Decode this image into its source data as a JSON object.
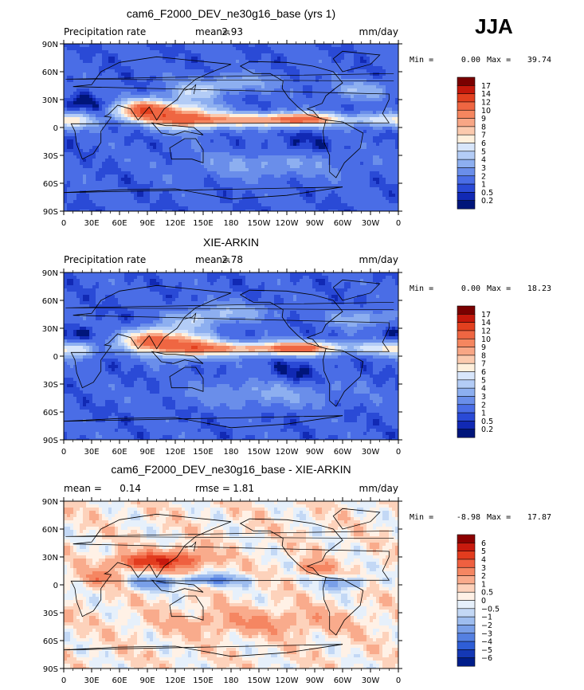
{
  "season": "JJA",
  "x_tick_labels": [
    "0",
    "30E",
    "60E",
    "90E",
    "120E",
    "150E",
    "180",
    "150W",
    "120W",
    "90W",
    "60W",
    "30W",
    "0"
  ],
  "y_tick_labels": [
    "90N",
    "60N",
    "30N",
    "0",
    "30S",
    "60S",
    "90S"
  ],
  "panels": [
    {
      "title": "cam6_F2000_DEV_ne30g16_base (yrs 1)",
      "left_label": "Precipitation rate",
      "stat_label": "mean=",
      "stat_value": "2.93",
      "stat2_label": "",
      "stat2_value": "",
      "units": "mm/day",
      "min_label": "Min =",
      "min_value": "0.00",
      "max_label": "Max =",
      "max_value": "39.74",
      "colorbar_labels": [
        "17",
        "14",
        "12",
        "10",
        "9",
        "8",
        "7",
        "6",
        "5",
        "4",
        "3",
        "2",
        "1",
        "0.5",
        "0.2"
      ],
      "colorbar_colors": [
        "#7a0000",
        "#c4180b",
        "#e2401f",
        "#ef6642",
        "#f5865f",
        "#f8a685",
        "#fbcaae",
        "#fff0dc",
        "#d8e6fb",
        "#b3ccf6",
        "#8daff0",
        "#6a8eea",
        "#4a6de6",
        "#2a4ad6",
        "#1129b4",
        "#00157a"
      ]
    },
    {
      "title": "XIE-ARKIN",
      "left_label": "Precipitation rate",
      "stat_label": "mean=",
      "stat_value": "2.78",
      "stat2_label": "",
      "stat2_value": "",
      "units": "mm/day",
      "min_label": "Min =",
      "min_value": "0.00",
      "max_label": "Max =",
      "max_value": "18.23",
      "colorbar_labels": [
        "17",
        "14",
        "12",
        "10",
        "9",
        "8",
        "7",
        "6",
        "5",
        "4",
        "3",
        "2",
        "1",
        "0.5",
        "0.2"
      ],
      "colorbar_colors": [
        "#7a0000",
        "#c4180b",
        "#e2401f",
        "#ef6642",
        "#f5865f",
        "#f8a685",
        "#fbcaae",
        "#fff0dc",
        "#d8e6fb",
        "#b3ccf6",
        "#8daff0",
        "#6a8eea",
        "#4a6de6",
        "#2a4ad6",
        "#1129b4",
        "#00157a"
      ]
    },
    {
      "title": "cam6_F2000_DEV_ne30g16_base - XIE-ARKIN",
      "left_label": "",
      "stat_label": "mean =",
      "stat_value": "0.14",
      "stat2_label": "rmse =",
      "stat2_value": "1.81",
      "units": "mm/day",
      "min_label": "Min =",
      "min_value": "-8.98",
      "max_label": "Max =",
      "max_value": "17.87",
      "colorbar_labels": [
        "6",
        "5",
        "4",
        "3",
        "2",
        "1",
        "0.5",
        "0",
        "-0.5",
        "-1",
        "-2",
        "-3",
        "-4",
        "-5",
        "-6"
      ],
      "colorbar_colors": [
        "#8c0000",
        "#c81a0e",
        "#e23c1e",
        "#ef6040",
        "#f58662",
        "#f9ab8c",
        "#fdd2bb",
        "#fff1e6",
        "#e6f0fb",
        "#c3d8f5",
        "#9ebdef",
        "#799fe8",
        "#5480e1",
        "#2f5ed6",
        "#1438b5",
        "#001d8a"
      ]
    }
  ],
  "map_colors": {
    "ocean_low": "#2a55d8",
    "ocean_mid": "#4f7fe6",
    "dry": "#1129b4",
    "light": "#dbe7fb",
    "warm": "#f08a66",
    "hot": "#d22a14",
    "coast": "#000000"
  }
}
